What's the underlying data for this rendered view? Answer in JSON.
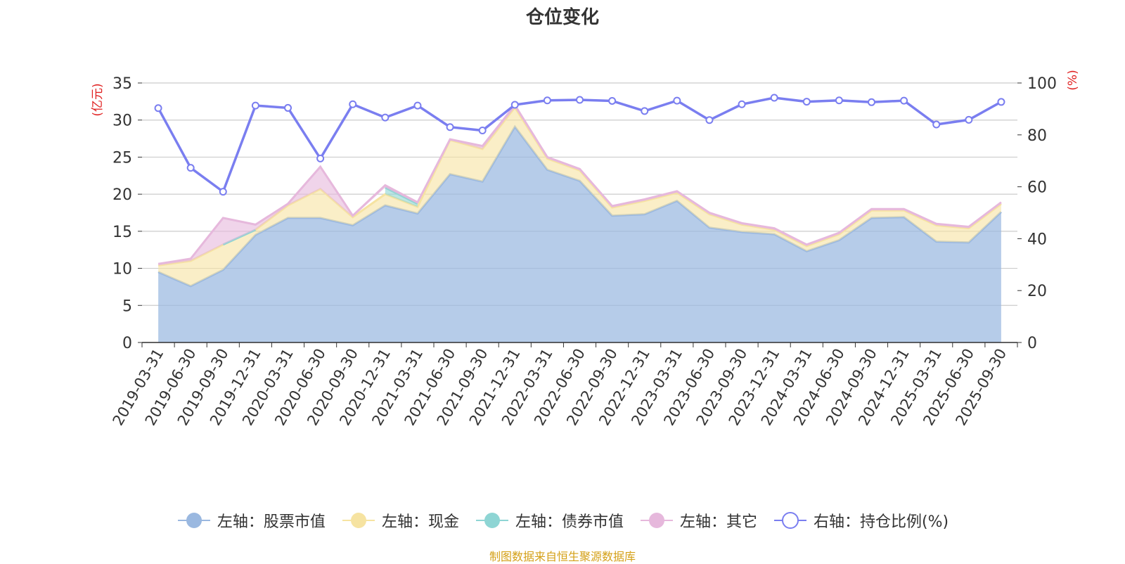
{
  "title": "仓位变化",
  "source": "制图数据来自恒生聚源数据库",
  "chart_data": {
    "type": "area",
    "title": "仓位变化",
    "categories": [
      "2019-03-31",
      "2019-06-30",
      "2019-09-30",
      "2019-12-31",
      "2020-03-31",
      "2020-06-30",
      "2020-09-30",
      "2020-12-31",
      "2021-03-31",
      "2021-06-30",
      "2021-09-30",
      "2021-12-31",
      "2022-03-31",
      "2022-06-30",
      "2022-09-30",
      "2022-12-31",
      "2023-03-31",
      "2023-06-30",
      "2023-09-30",
      "2023-12-31",
      "2024-03-31",
      "2024-06-30",
      "2024-09-30",
      "2024-12-31",
      "2025-03-31",
      "2025-06-30",
      "2025-09-30"
    ],
    "left_axis": {
      "label": "(亿元)",
      "min": 0,
      "max": 35,
      "ticks": [
        0,
        5,
        10,
        15,
        20,
        25,
        30,
        35
      ]
    },
    "right_axis": {
      "label": "(%)",
      "min": 0,
      "max": 100,
      "ticks": [
        0,
        20,
        40,
        60,
        80,
        100
      ]
    },
    "series": [
      {
        "name": "左轴：股票市值",
        "axis": "left",
        "color": "#9ab8e0",
        "values": [
          9.5,
          7.6,
          9.8,
          14.5,
          16.8,
          16.8,
          15.8,
          18.5,
          17.4,
          22.7,
          21.7,
          29.1,
          23.3,
          21.8,
          17.1,
          17.3,
          19.1,
          15.5,
          14.9,
          14.6,
          12.3,
          13.8,
          16.8,
          16.9,
          13.6,
          13.5,
          17.6
        ]
      },
      {
        "name": "左轴：现金",
        "axis": "left",
        "color": "#f6e3a1",
        "values": [
          0.9,
          3.4,
          3.4,
          0.7,
          1.7,
          3.9,
          1.1,
          1.5,
          0.9,
          4.6,
          4.4,
          2.6,
          1.5,
          1.4,
          1.1,
          1.8,
          1.1,
          1.8,
          1.0,
          0.6,
          0.7,
          0.8,
          1.0,
          0.9,
          2.2,
          1.9,
          1.1
        ]
      },
      {
        "name": "左轴：债券市值",
        "axis": "left",
        "color": "#8ed5d4",
        "values": [
          null,
          null,
          0.0,
          0.0,
          null,
          null,
          null,
          0.9,
          0.4,
          null,
          null,
          null,
          null,
          null,
          null,
          null,
          null,
          null,
          null,
          null,
          null,
          null,
          null,
          null,
          null,
          null,
          null
        ]
      },
      {
        "name": "左轴：其它",
        "axis": "left",
        "color": "#e6b8dc",
        "values": [
          0.2,
          0.3,
          3.6,
          0.7,
          0.2,
          3.0,
          0.2,
          0.3,
          0.2,
          0.1,
          0.4,
          0.3,
          0.2,
          0.2,
          0.2,
          0.2,
          0.2,
          0.2,
          0.2,
          0.2,
          0.2,
          0.2,
          0.2,
          0.2,
          0.2,
          0.2,
          0.2
        ]
      },
      {
        "name": "右轴：持仓比例(%)",
        "axis": "right",
        "color": "#7a7ef0",
        "values": [
          90.3,
          67.3,
          58.1,
          91.3,
          90.4,
          70.9,
          91.8,
          86.7,
          91.3,
          83.0,
          81.7,
          91.6,
          93.3,
          93.5,
          93.1,
          89.2,
          93.2,
          85.7,
          91.8,
          94.3,
          92.8,
          93.3,
          92.6,
          93.2,
          84.0,
          85.8,
          92.7
        ]
      }
    ]
  },
  "legend": [
    {
      "label": "左轴：股票市值",
      "color": "#9ab8e0",
      "marker": "filled-circle"
    },
    {
      "label": "左轴：现金",
      "color": "#f6e3a1",
      "marker": "filled-circle"
    },
    {
      "label": "左轴：债券市值",
      "color": "#8ed5d4",
      "marker": "filled-circle"
    },
    {
      "label": "左轴：其它",
      "color": "#e6b8dc",
      "marker": "filled-circle"
    },
    {
      "label": "右轴：持仓比例(%)",
      "color": "#7a7ef0",
      "marker": "hollow-circle"
    }
  ]
}
